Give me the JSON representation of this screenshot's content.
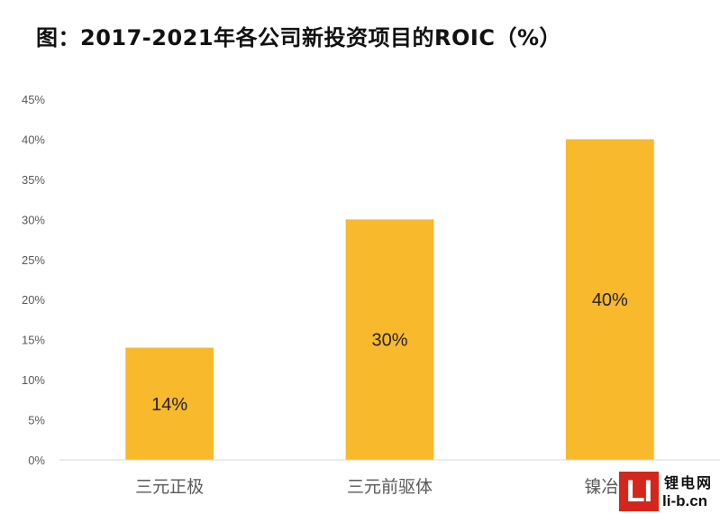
{
  "chart_data": {
    "type": "bar",
    "title": "图：2017-2021年各公司新投资项目的ROIC（%）",
    "categories": [
      "三元正极",
      "三元前驱体",
      "镍冶炼"
    ],
    "values": [
      14,
      30,
      40
    ],
    "data_labels": [
      "14%",
      "30%",
      "40%"
    ],
    "yticks": [
      "0%",
      "5%",
      "10%",
      "15%",
      "20%",
      "25%",
      "30%",
      "35%",
      "40%",
      "45%"
    ],
    "ylim": [
      0,
      45
    ],
    "xlabel": "",
    "ylabel": "",
    "grid": false,
    "bar_color": "#F9B92C"
  },
  "watermark": {
    "logo": "LI",
    "name": "锂电网",
    "url": "li-b.cn"
  }
}
